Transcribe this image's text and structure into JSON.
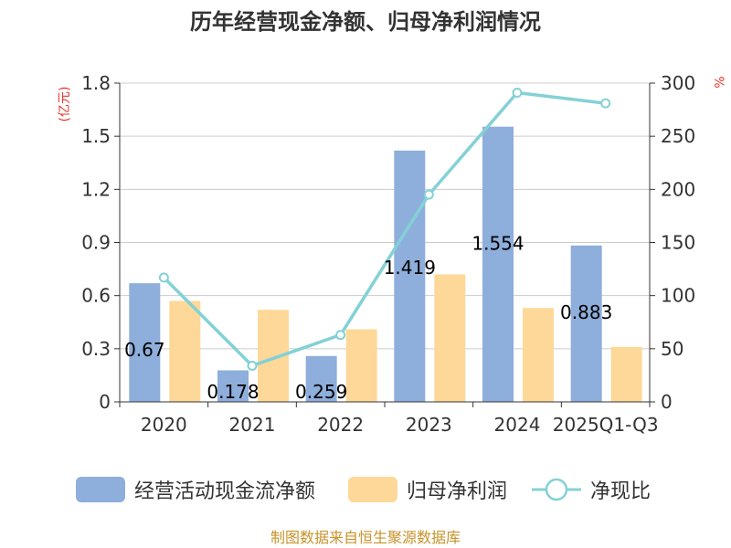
{
  "chart_data": {
    "type": "bar",
    "title": "历年经营现金净额、归母净利润情况",
    "categories": [
      "2020",
      "2021",
      "2022",
      "2023",
      "2024",
      "2025Q1-Q3"
    ],
    "series": [
      {
        "name": "经营活动现金流净额",
        "type": "bar",
        "axis": "left",
        "color": "#8eaedb",
        "values": [
          0.67,
          0.178,
          0.259,
          1.419,
          1.554,
          0.883
        ],
        "labels": [
          "0.67",
          "0.178",
          "0.259",
          "1.419",
          "1.554",
          "0.883"
        ]
      },
      {
        "name": "归母净利润",
        "type": "bar",
        "axis": "left",
        "color": "#fed898",
        "values": [
          0.57,
          0.52,
          0.41,
          0.72,
          0.53,
          0.31
        ]
      },
      {
        "name": "净现比",
        "type": "line",
        "axis": "right",
        "color": "#83d1d6",
        "values": [
          117,
          34,
          63,
          195,
          291,
          281
        ]
      }
    ],
    "yaxis_left": {
      "unit": "(亿元)",
      "min": 0,
      "max": 1.8,
      "ticks": [
        "0",
        "0.3",
        "0.6",
        "0.9",
        "1.2",
        "1.5",
        "1.8"
      ]
    },
    "yaxis_right": {
      "unit": "%",
      "min": 0,
      "max": 300,
      "ticks": [
        "0",
        "50",
        "100",
        "150",
        "200",
        "250",
        "300"
      ]
    },
    "grid": true,
    "legend_position": "bottom"
  },
  "source": "制图数据来自恒生聚源数据库"
}
